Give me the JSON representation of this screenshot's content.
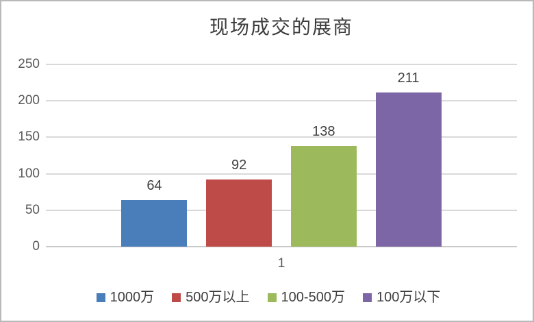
{
  "chart_data": {
    "type": "bar",
    "title": "现场成交的展商",
    "categories": [
      "1000万",
      "500万以上",
      "100-500万",
      "100万以下"
    ],
    "values": [
      64,
      92,
      138,
      211
    ],
    "colors": [
      "#4a7ebb",
      "#bf4b49",
      "#9cba5b",
      "#7d66a5"
    ],
    "data_labels": [
      64,
      92,
      138,
      211
    ],
    "x_tick_label": "1",
    "xlabel": "",
    "ylabel": "",
    "y_ticks": [
      0,
      50,
      100,
      150,
      200,
      250
    ],
    "ylim": [
      0,
      250
    ],
    "grid": true,
    "legend_position": "bottom"
  },
  "colors": {
    "background": "#ffffff",
    "frame_border": "#b9b9b9",
    "gridline": "#d9d9d9",
    "baseline": "#c9c9c9",
    "title_text": "#3d3d3d",
    "tick_text": "#595959",
    "value_label_text": "#3f3f3f",
    "legend_text": "#3f3f3f"
  }
}
